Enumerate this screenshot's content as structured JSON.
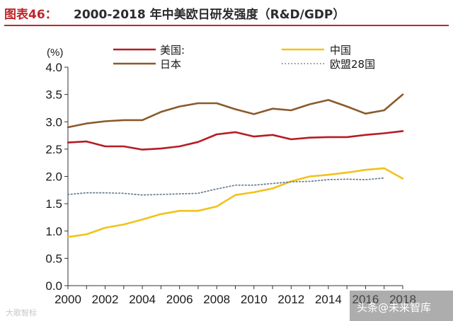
{
  "header": {
    "figure_label": "图表46：",
    "title": "2000-2018 年中美欧日研发强度（R&D/GDP）"
  },
  "chart_data": {
    "type": "line",
    "title": "2000-2018 年中美欧日研发强度（R&D/GDP）",
    "ylabel": "(%)",
    "xlabel": "",
    "x": [
      2000,
      2001,
      2002,
      2003,
      2004,
      2005,
      2006,
      2007,
      2008,
      2009,
      2010,
      2011,
      2012,
      2013,
      2014,
      2015,
      2016,
      2017,
      2018
    ],
    "xlim": [
      2000,
      2018
    ],
    "ylim": [
      0.0,
      4.0
    ],
    "xticks": [
      "2000",
      "2002",
      "2004",
      "2006",
      "2008",
      "2010",
      "2012",
      "2014",
      "2016",
      "2018"
    ],
    "yticks": [
      "0.0",
      "0.5",
      "1.0",
      "1.5",
      "2.0",
      "2.5",
      "3.0",
      "3.5",
      "4.0"
    ],
    "grid": false,
    "legend_position": "top",
    "series": [
      {
        "name": "美国:",
        "color": "#b71c24",
        "style": "solid",
        "values": [
          2.62,
          2.64,
          2.55,
          2.55,
          2.49,
          2.51,
          2.55,
          2.63,
          2.77,
          2.81,
          2.73,
          2.76,
          2.68,
          2.71,
          2.72,
          2.72,
          2.76,
          2.79,
          2.83
        ]
      },
      {
        "name": "中国",
        "color": "#f2c21a",
        "style": "solid",
        "values": [
          0.89,
          0.94,
          1.06,
          1.12,
          1.21,
          1.31,
          1.37,
          1.37,
          1.45,
          1.66,
          1.71,
          1.78,
          1.91,
          2.0,
          2.03,
          2.07,
          2.12,
          2.15,
          1.96
        ]
      },
      {
        "name": "日本",
        "color": "#8a5a2b",
        "style": "solid",
        "values": [
          2.9,
          2.97,
          3.01,
          3.03,
          3.03,
          3.18,
          3.28,
          3.34,
          3.34,
          3.23,
          3.14,
          3.24,
          3.21,
          3.32,
          3.4,
          3.28,
          3.15,
          3.21,
          3.5
        ]
      },
      {
        "name": "欧盟28国",
        "color": "#6c7f90",
        "style": "dotted",
        "values": [
          1.67,
          1.7,
          1.7,
          1.69,
          1.66,
          1.67,
          1.68,
          1.69,
          1.77,
          1.84,
          1.84,
          1.87,
          1.9,
          1.91,
          1.94,
          1.95,
          1.94,
          1.97,
          null
        ]
      }
    ]
  },
  "watermarks": {
    "left": "大歌智标",
    "right": "头条@未来智库"
  }
}
